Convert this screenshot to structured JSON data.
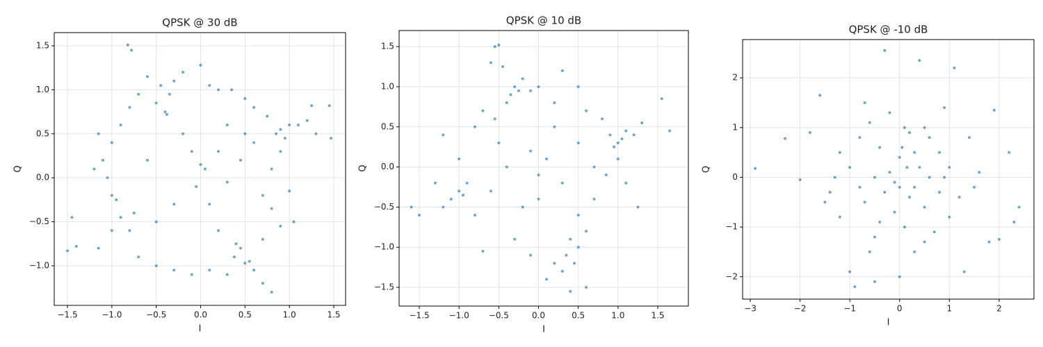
{
  "chart_data": [
    {
      "type": "scatter",
      "title": "QPSK @ 30 dB",
      "x_label": "I",
      "y_label": "Q",
      "color": "#1f77b4",
      "grid": true,
      "xlim": [
        -1.649,
        1.633
      ],
      "ylim": [
        -1.45,
        1.65
      ],
      "xticks": [
        {
          "value": -1.5,
          "label": "−1.5"
        },
        {
          "value": -1.0,
          "label": "−1.0"
        },
        {
          "value": -0.5,
          "label": "−0.5"
        },
        {
          "value": 0,
          "label": "0.0"
        },
        {
          "value": 0.5,
          "label": "0.5"
        },
        {
          "value": 1.0,
          "label": "1.0"
        },
        {
          "value": 1.5,
          "label": "1.5"
        }
      ],
      "yticks": [
        {
          "value": -1.0,
          "label": "−1.0"
        },
        {
          "value": -0.5,
          "label": "−0.5"
        },
        {
          "value": 0,
          "label": "0.0"
        },
        {
          "value": 0.5,
          "label": "0.5"
        },
        {
          "value": 1.0,
          "label": "1.0"
        },
        {
          "value": 1.5,
          "label": "1.5"
        }
      ],
      "x": [
        -0.82,
        -0.78,
        -0.6,
        -0.45,
        -0.35,
        -0.4,
        -0.38,
        -0.5,
        -0.3,
        -0.2,
        0.0,
        0.1,
        0.2,
        0.35,
        0.5,
        0.6,
        0.75,
        0.9,
        0.85,
        0.95,
        1.0,
        1.1,
        1.2,
        1.25,
        1.45,
        1.47,
        1.3,
        0.9,
        0.8,
        1.0,
        1.05,
        0.9,
        0.7,
        0.4,
        0.45,
        0.38,
        0.5,
        0.55,
        0.6,
        0.8,
        0.7,
        0.3,
        0.1,
        -0.1,
        -0.3,
        -0.5,
        -0.7,
        -0.8,
        -0.75,
        -0.9,
        -0.95,
        -1.0,
        -1.05,
        -1.1,
        -1.0,
        -0.9,
        -0.8,
        -0.7,
        -1.2,
        -1.15,
        -1.45,
        -1.5,
        -1.4,
        -1.15,
        -1.0,
        0.0,
        0.05,
        -0.2,
        -0.1,
        0.2,
        0.3,
        -0.05,
        0.1,
        -0.3,
        0.45,
        0.5,
        0.6,
        -0.6,
        -0.5,
        0.3,
        0.7,
        0.8,
        0.2
      ],
      "y": [
        1.51,
        1.45,
        1.15,
        1.05,
        0.95,
        0.75,
        0.72,
        0.85,
        1.1,
        1.2,
        1.28,
        1.05,
        1.0,
        1.0,
        0.9,
        0.8,
        0.7,
        0.55,
        0.5,
        0.45,
        0.6,
        0.6,
        0.65,
        0.82,
        0.82,
        0.45,
        0.5,
        0.3,
        0.1,
        -0.15,
        -0.5,
        -0.55,
        -0.7,
        -0.75,
        -0.8,
        -0.9,
        -0.97,
        -0.95,
        -1.05,
        -1.3,
        -1.2,
        -1.1,
        -1.05,
        -1.1,
        -1.05,
        -1.0,
        -0.9,
        -0.6,
        -0.4,
        -0.45,
        -0.25,
        -0.2,
        0.0,
        0.2,
        0.4,
        0.6,
        0.8,
        0.95,
        0.1,
        0.5,
        -0.45,
        -0.83,
        -0.78,
        -0.8,
        -0.6,
        0.15,
        0.1,
        0.5,
        0.3,
        0.3,
        -0.05,
        -0.1,
        -0.3,
        -0.3,
        0.2,
        0.5,
        0.4,
        0.2,
        -0.5,
        0.6,
        -0.2,
        -0.35,
        -0.6
      ]
    },
    {
      "type": "scatter",
      "title": "QPSK @ 10 dB",
      "x_label": "I",
      "y_label": "Q",
      "color": "#1f77b4",
      "grid": true,
      "xlim": [
        -1.754,
        1.885
      ],
      "ylim": [
        -1.733,
        1.7
      ],
      "xticks": [
        {
          "value": -1.5,
          "label": "−1.5"
        },
        {
          "value": -1.0,
          "label": "−1.0"
        },
        {
          "value": -0.5,
          "label": "−0.5"
        },
        {
          "value": 0,
          "label": "0.0"
        },
        {
          "value": 0.5,
          "label": "0.5"
        },
        {
          "value": 1.0,
          "label": "1.0"
        },
        {
          "value": 1.5,
          "label": "1.5"
        }
      ],
      "yticks": [
        {
          "value": -1.5,
          "label": "−1.5"
        },
        {
          "value": -1.0,
          "label": "−1.0"
        },
        {
          "value": -0.5,
          "label": "−0.5"
        },
        {
          "value": 0,
          "label": "0.0"
        },
        {
          "value": 0.5,
          "label": "0.5"
        },
        {
          "value": 1.0,
          "label": "1.0"
        },
        {
          "value": 1.5,
          "label": "1.5"
        }
      ],
      "x": [
        -0.55,
        -0.5,
        -0.6,
        -0.45,
        -0.3,
        -0.25,
        -0.35,
        -0.2,
        -0.4,
        -0.1,
        0.0,
        -0.7,
        -0.8,
        -0.55,
        0.2,
        0.3,
        0.5,
        0.6,
        0.8,
        0.9,
        1.0,
        0.95,
        1.05,
        1.1,
        1.2,
        1.3,
        1.0,
        0.85,
        1.1,
        1.25,
        1.55,
        1.65,
        0.7,
        0.5,
        0.4,
        0.35,
        0.45,
        0.3,
        0.5,
        0.6,
        0.2,
        0.1,
        0.4,
        0.6,
        -0.1,
        -0.3,
        -0.7,
        -0.8,
        -1.0,
        -0.95,
        -1.1,
        -0.9,
        -1.2,
        -1.5,
        -1.6,
        -1.3,
        -1.2,
        -1.0,
        -0.6,
        -0.4,
        -0.1,
        0.0,
        0.1,
        0.3,
        0.5,
        0.7,
        -0.2,
        0.2,
        -0.5,
        0.0
      ],
      "y": [
        1.5,
        1.52,
        1.3,
        1.25,
        1.0,
        0.95,
        0.9,
        1.1,
        0.8,
        0.95,
        1.0,
        0.7,
        0.5,
        0.6,
        0.8,
        1.2,
        1.0,
        0.7,
        0.6,
        0.4,
        0.3,
        0.25,
        0.35,
        0.45,
        0.4,
        0.55,
        0.1,
        -0.1,
        -0.2,
        -0.5,
        0.85,
        0.45,
        -0.4,
        -0.6,
        -0.9,
        -1.1,
        -1.2,
        -1.3,
        -1.0,
        -0.8,
        -1.2,
        -1.4,
        -1.55,
        -1.5,
        -1.1,
        -0.9,
        -1.05,
        -0.6,
        -0.3,
        -0.35,
        -0.4,
        -0.2,
        -0.5,
        -0.6,
        -0.5,
        -0.2,
        0.4,
        0.1,
        -0.3,
        0.0,
        0.2,
        -0.4,
        0.1,
        -0.2,
        0.3,
        0.0,
        -0.5,
        0.5,
        0.3,
        -0.1
      ]
    },
    {
      "type": "scatter",
      "title": "QPSK @ -10 dB",
      "x_label": "I",
      "y_label": "Q",
      "color": "#1f77b4",
      "grid": true,
      "xlim": [
        -3.154,
        2.7
      ],
      "ylim": [
        -2.45,
        2.77
      ],
      "xticks": [
        {
          "value": -3,
          "label": "−3"
        },
        {
          "value": -2,
          "label": "−2"
        },
        {
          "value": -1,
          "label": "−1"
        },
        0,
        1,
        2
      ],
      "yticks": [
        {
          "value": -2,
          "label": "−2"
        },
        {
          "value": -1,
          "label": "−1"
        },
        0,
        1,
        2
      ],
      "x": [
        -2.9,
        -2.3,
        -2.0,
        -1.8,
        -1.6,
        -1.5,
        -1.3,
        -1.2,
        -1.0,
        -1.0,
        -0.9,
        -0.8,
        -0.7,
        -0.6,
        -0.5,
        -0.5,
        -0.4,
        -0.3,
        -0.3,
        -0.2,
        -0.2,
        -0.1,
        0.0,
        0.0,
        0.05,
        0.1,
        0.1,
        0.15,
        0.2,
        0.3,
        0.3,
        0.4,
        0.4,
        0.5,
        0.5,
        0.6,
        0.7,
        0.8,
        0.8,
        0.9,
        1.0,
        1.1,
        1.0,
        1.2,
        1.3,
        1.4,
        1.5,
        1.8,
        1.9,
        2.0,
        2.2,
        2.3,
        2.4,
        -0.6,
        -1.2,
        -0.8,
        0.6,
        -0.1,
        0.2,
        0.3,
        -0.4,
        0.9,
        -1.4,
        1.6,
        -0.7,
        0.0,
        -0.5,
        0.5
      ],
      "y": [
        0.18,
        0.78,
        -0.05,
        0.9,
        1.65,
        -0.5,
        0.0,
        -0.8,
        0.2,
        -1.9,
        -2.2,
        0.8,
        -0.5,
        1.1,
        0.0,
        -1.2,
        0.6,
        -0.3,
        2.55,
        1.3,
        0.1,
        -0.7,
        0.4,
        -0.2,
        0.6,
        1.0,
        -1.0,
        0.2,
        -0.4,
        0.5,
        -1.5,
        2.35,
        0.2,
        -0.6,
        1.0,
        0.0,
        -1.1,
        0.5,
        -0.3,
        1.4,
        -0.8,
        2.2,
        0.2,
        -0.4,
        -1.9,
        0.8,
        -0.2,
        -1.3,
        1.35,
        -1.25,
        0.5,
        -0.9,
        -0.6,
        -1.5,
        0.5,
        -0.2,
        0.8,
        -0.1,
        0.9,
        -0.2,
        -0.9,
        0.0,
        -0.3,
        0.1,
        1.5,
        -2.0,
        -2.1,
        -1.3
      ]
    }
  ]
}
